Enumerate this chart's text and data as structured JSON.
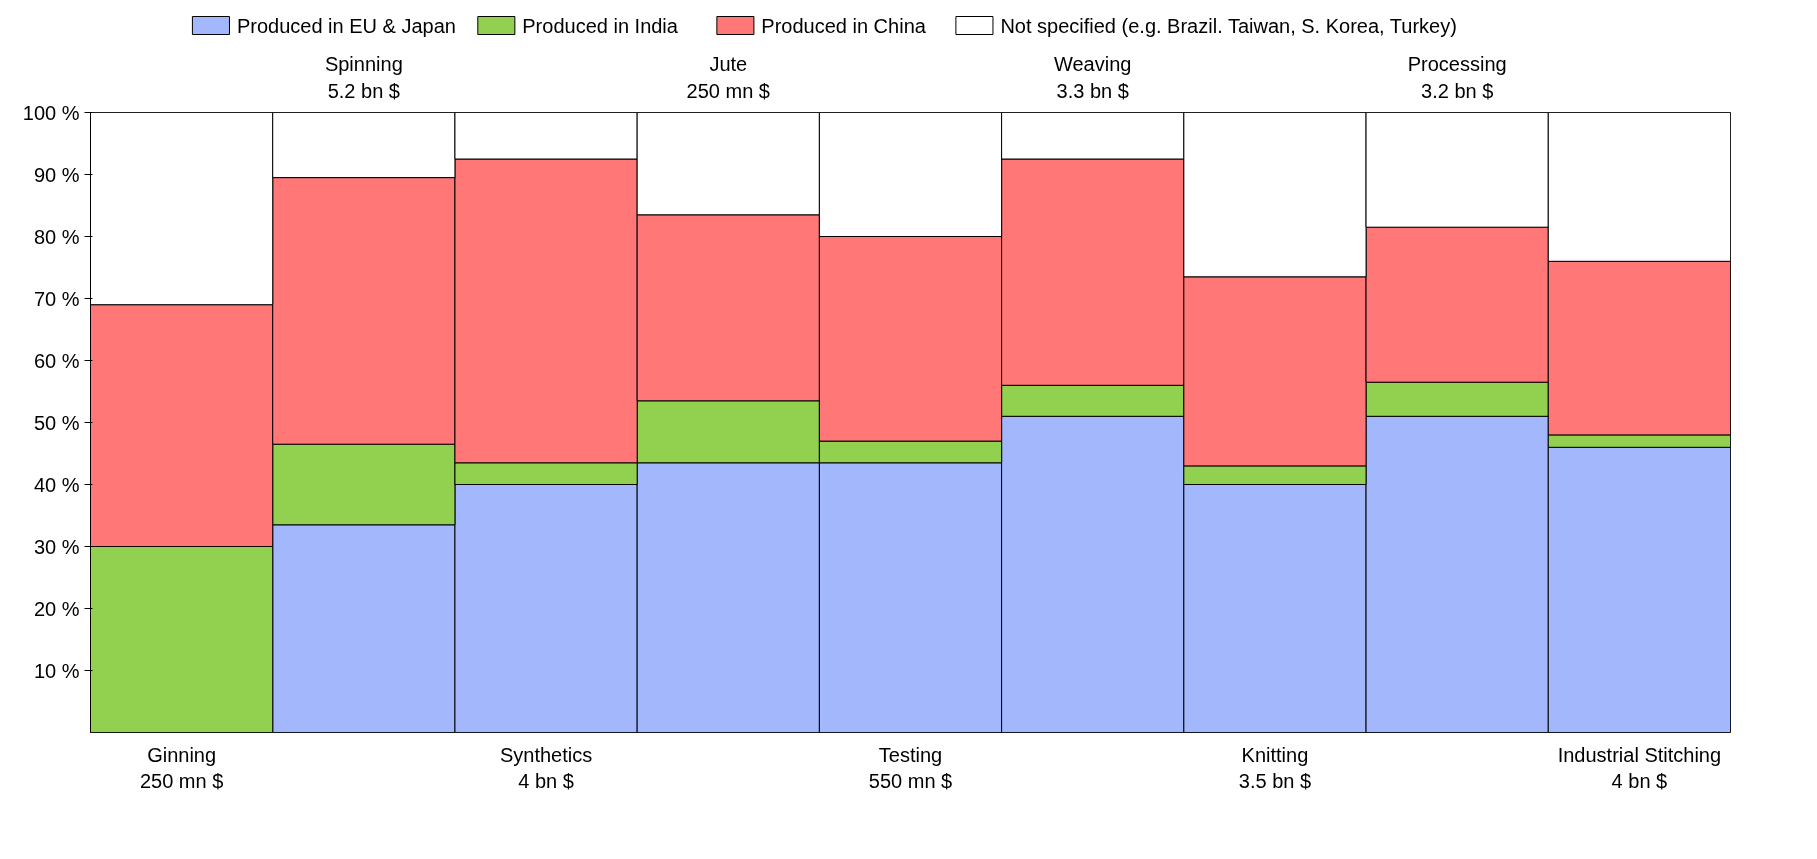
{
  "chart_data": {
    "type": "bar",
    "stacked": true,
    "categories": [
      "Ginning\n250 mn $",
      "Spinning\n5.2 bn $",
      "Synthetics\n4 bn $",
      "Jute\n250 mn $",
      "Testing\n550 mn $",
      "Weaving\n3.3 bn $",
      "Knitting\n3.5 bn $",
      "Processing\n3.2 bn $",
      "Industrial Stitching\n4 bn $"
    ],
    "series": [
      {
        "name": "Produced in EU & Japan",
        "color": "#a3b8fc",
        "values": [
          null,
          33.5,
          40,
          43.5,
          43.5,
          51,
          40,
          51,
          46
        ]
      },
      {
        "name": "Produced in India",
        "color": "#92d050",
        "values": [
          30,
          13,
          3.5,
          10,
          3.5,
          5,
          3,
          5.5,
          2
        ]
      },
      {
        "name": "Produced in China",
        "color": "#ff7777",
        "values": [
          39,
          43,
          49,
          30,
          33,
          36.5,
          30.5,
          25,
          28
        ]
      },
      {
        "name": "Not specified (e.g. Brazil. Taiwan, S. Korea, Turkey)",
        "color": "#ffffff",
        "values": [
          31,
          10.5,
          7.5,
          16.5,
          20,
          7.5,
          26.5,
          18.5,
          24
        ]
      }
    ],
    "ylim": [
      0,
      100
    ],
    "yticks": [
      {
        "value": 10,
        "label": "10 %"
      },
      {
        "value": 20,
        "label": "20 %"
      },
      {
        "value": 30,
        "label": "30 %"
      },
      {
        "value": 40,
        "label": "40 %"
      },
      {
        "value": 50,
        "label": "50 %"
      },
      {
        "value": 60,
        "label": "60 %"
      },
      {
        "value": 70,
        "label": "70 %"
      },
      {
        "value": 80,
        "label": "80 %"
      },
      {
        "value": 90,
        "label": "90 %"
      },
      {
        "value": 100,
        "label": "100 %"
      }
    ],
    "grid": false,
    "legend": "top"
  }
}
